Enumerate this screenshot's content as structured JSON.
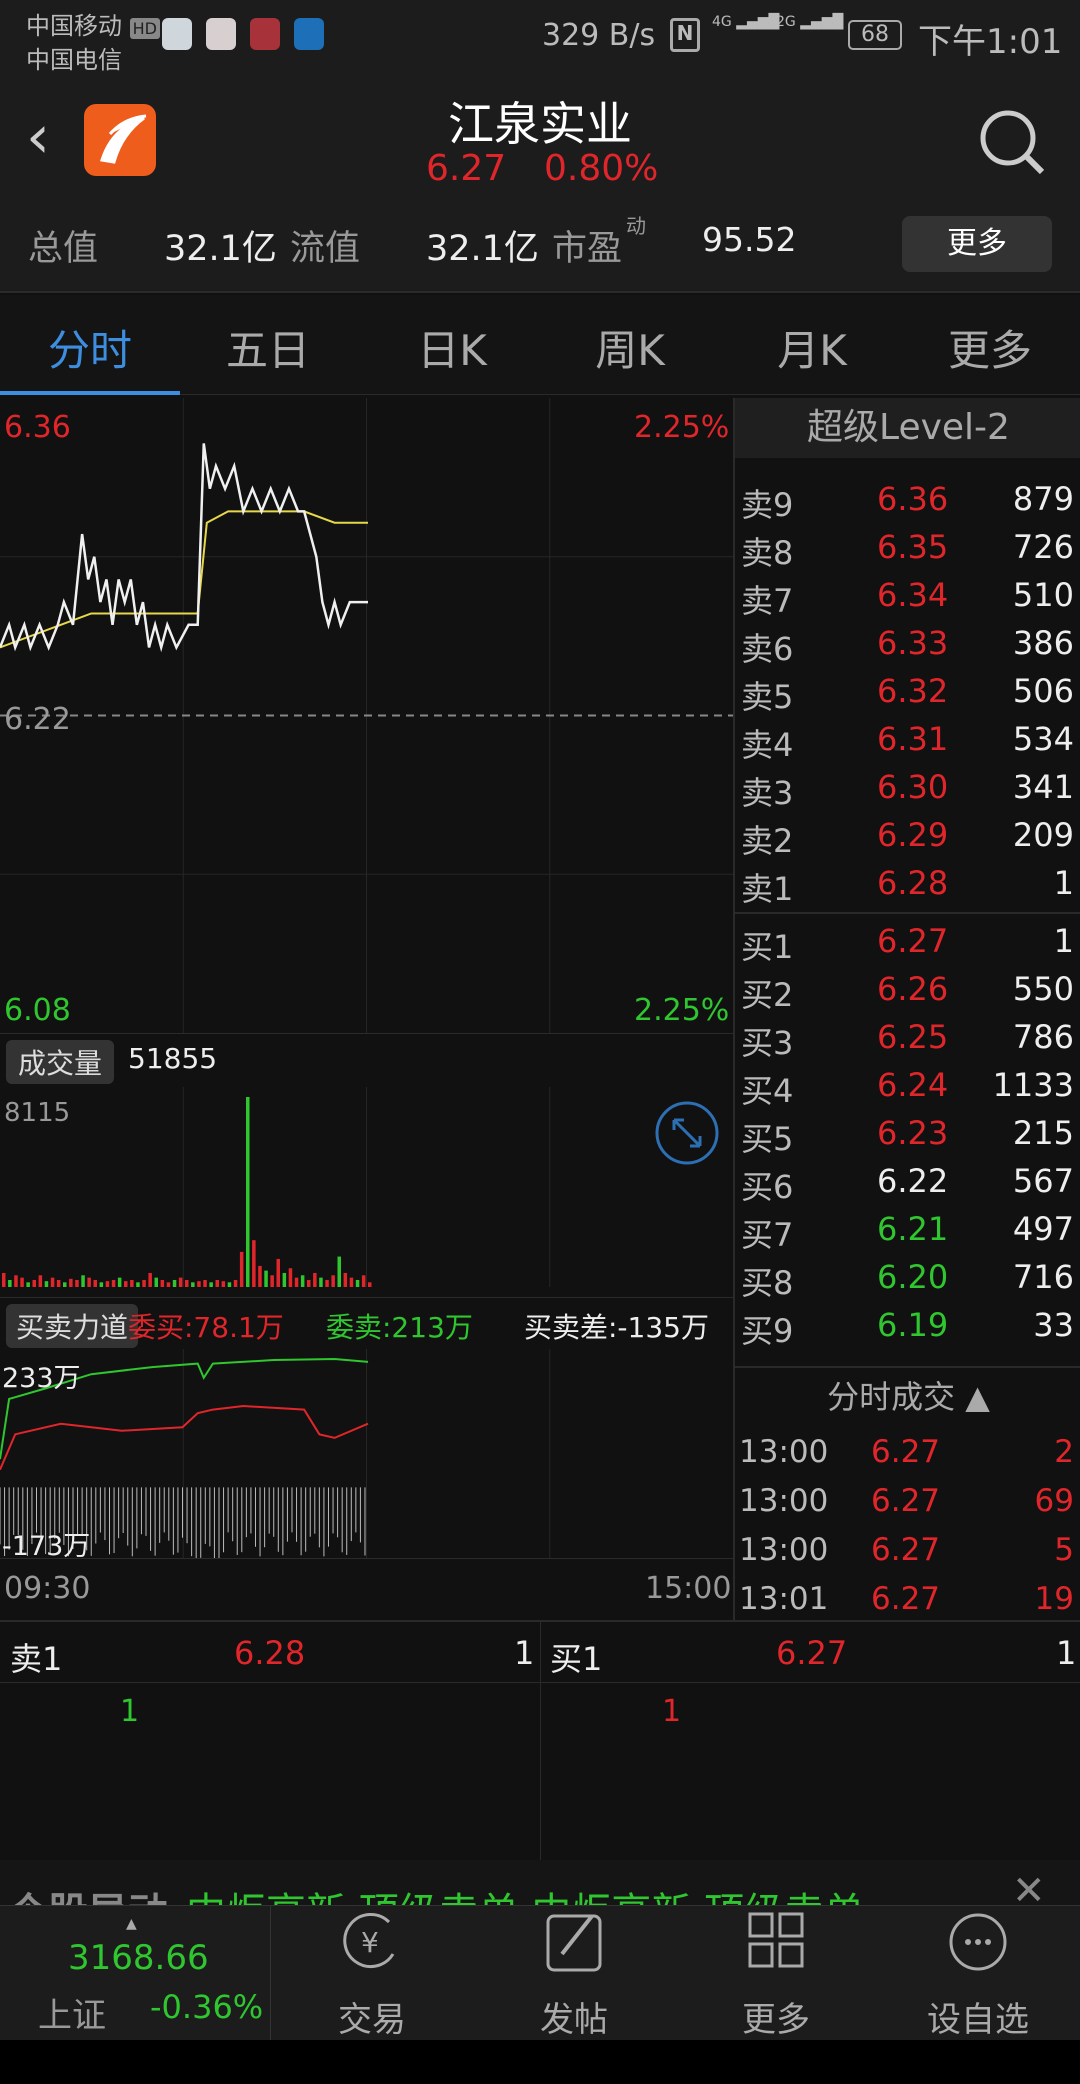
{
  "status": {
    "carrier1": "中国移动",
    "hd": "HD",
    "carrier2": "中国电信",
    "speed": "329 B/s",
    "net1": "4G",
    "net2": "2G",
    "battery": "68",
    "time": "下午1:01"
  },
  "header": {
    "title": "江泉实业",
    "price": "6.27",
    "change_pct": "0.80%",
    "stats": [
      {
        "label": "总值",
        "value": "32.1亿"
      },
      {
        "label": "流值",
        "value": "32.1亿"
      },
      {
        "label": "市盈",
        "sup": "动",
        "value": "95.52"
      }
    ],
    "more_button": "更多"
  },
  "tabs": [
    {
      "label": "分时",
      "active": true
    },
    {
      "label": "五日"
    },
    {
      "label": "日K"
    },
    {
      "label": "周K"
    },
    {
      "label": "月K"
    },
    {
      "label": "更多"
    }
  ],
  "chart_labels": {
    "top_price": "6.36",
    "top_pct": "2.25%",
    "mid_price": "6.22",
    "bottom_price": "6.08",
    "bottom_pct": "2.25%",
    "volume_tag": "成交量",
    "volume_value": "51855",
    "volume_max": "8115",
    "force_tag": "买卖力道",
    "bid": "委买:78.1万",
    "ask": "委卖:213万",
    "diff": "买卖差:-135万",
    "force_max": "233万",
    "force_min": "-173万",
    "time_start": "09:30",
    "time_end": "15:00"
  },
  "chart_data": {
    "type": "line",
    "x_unit": "minutes since 09:30",
    "ylim": [
      6.08,
      6.36
    ],
    "prev_close": 6.22,
    "xlim": [
      0,
      241
    ],
    "price": [
      [
        0,
        6.25
      ],
      [
        3,
        6.26
      ],
      [
        5,
        6.25
      ],
      [
        8,
        6.26
      ],
      [
        10,
        6.25
      ],
      [
        13,
        6.26
      ],
      [
        16,
        6.25
      ],
      [
        19,
        6.26
      ],
      [
        21,
        6.27
      ],
      [
        24,
        6.26
      ],
      [
        27,
        6.3
      ],
      [
        29,
        6.28
      ],
      [
        31,
        6.29
      ],
      [
        33,
        6.27
      ],
      [
        35,
        6.28
      ],
      [
        37,
        6.26
      ],
      [
        39,
        6.28
      ],
      [
        41,
        6.27
      ],
      [
        43,
        6.28
      ],
      [
        45,
        6.26
      ],
      [
        47,
        6.27
      ],
      [
        49,
        6.25
      ],
      [
        51,
        6.26
      ],
      [
        53,
        6.25
      ],
      [
        55,
        6.26
      ],
      [
        58,
        6.25
      ],
      [
        62,
        6.26
      ],
      [
        65,
        6.26
      ],
      [
        67,
        6.34
      ],
      [
        69,
        6.32
      ],
      [
        71,
        6.33
      ],
      [
        74,
        6.32
      ],
      [
        77,
        6.33
      ],
      [
        80,
        6.31
      ],
      [
        83,
        6.32
      ],
      [
        86,
        6.31
      ],
      [
        89,
        6.32
      ],
      [
        92,
        6.31
      ],
      [
        95,
        6.32
      ],
      [
        98,
        6.31
      ],
      [
        100,
        6.31
      ],
      [
        102,
        6.3
      ],
      [
        104,
        6.29
      ],
      [
        106,
        6.27
      ],
      [
        108,
        6.26
      ],
      [
        110,
        6.27
      ],
      [
        112,
        6.26
      ],
      [
        115,
        6.27
      ],
      [
        121,
        6.27
      ]
    ],
    "avg": [
      [
        0,
        6.25
      ],
      [
        10,
        6.255
      ],
      [
        20,
        6.26
      ],
      [
        30,
        6.265
      ],
      [
        50,
        6.265
      ],
      [
        65,
        6.265
      ],
      [
        68,
        6.305
      ],
      [
        75,
        6.31
      ],
      [
        90,
        6.31
      ],
      [
        100,
        6.31
      ],
      [
        110,
        6.305
      ],
      [
        121,
        6.305
      ]
    ],
    "volume_max": 8115,
    "volume": [
      600,
      300,
      500,
      400,
      200,
      300,
      500,
      250,
      400,
      300,
      200,
      350,
      300,
      500,
      400,
      300,
      200,
      250,
      300,
      400,
      250,
      300,
      200,
      300,
      600,
      400,
      300,
      200,
      300,
      400,
      300,
      200,
      250,
      300,
      200,
      300,
      250,
      200,
      300,
      1500,
      8115,
      2000,
      900,
      700,
      500,
      1200,
      600,
      800,
      400,
      500,
      300,
      600,
      400,
      300,
      500,
      1300,
      600,
      400,
      300,
      500,
      200
    ],
    "bid_line": [
      [
        0,
        -0.8
      ],
      [
        5,
        0.2
      ],
      [
        20,
        0.5
      ],
      [
        40,
        0.3
      ],
      [
        60,
        0.4
      ],
      [
        65,
        0.8
      ],
      [
        70,
        0.9
      ],
      [
        80,
        1.0
      ],
      [
        100,
        0.9
      ],
      [
        105,
        0.2
      ],
      [
        110,
        0.1
      ],
      [
        121,
        0.5
      ]
    ],
    "ask_line": [
      [
        0,
        -0.5
      ],
      [
        3,
        1.2
      ],
      [
        15,
        1.5
      ],
      [
        30,
        1.9
      ],
      [
        50,
        2.1
      ],
      [
        65,
        2.2
      ],
      [
        67,
        1.8
      ],
      [
        70,
        2.2
      ],
      [
        90,
        2.3
      ],
      [
        110,
        2.33
      ],
      [
        121,
        2.25
      ]
    ]
  },
  "order_book": {
    "header": "超级Level-2",
    "asks": [
      {
        "label": "卖9",
        "price": "6.36",
        "vol": "879",
        "color": "red"
      },
      {
        "label": "卖8",
        "price": "6.35",
        "vol": "726",
        "color": "red"
      },
      {
        "label": "卖7",
        "price": "6.34",
        "vol": "510",
        "color": "red"
      },
      {
        "label": "卖6",
        "price": "6.33",
        "vol": "386",
        "color": "red"
      },
      {
        "label": "卖5",
        "price": "6.32",
        "vol": "506",
        "color": "red"
      },
      {
        "label": "卖4",
        "price": "6.31",
        "vol": "534",
        "color": "red"
      },
      {
        "label": "卖3",
        "price": "6.30",
        "vol": "341",
        "color": "red"
      },
      {
        "label": "卖2",
        "price": "6.29",
        "vol": "209",
        "color": "red"
      },
      {
        "label": "卖1",
        "price": "6.28",
        "vol": "1",
        "color": "red"
      }
    ],
    "bids": [
      {
        "label": "买1",
        "price": "6.27",
        "vol": "1",
        "color": "red"
      },
      {
        "label": "买2",
        "price": "6.26",
        "vol": "550",
        "color": "red"
      },
      {
        "label": "买3",
        "price": "6.25",
        "vol": "786",
        "color": "red"
      },
      {
        "label": "买4",
        "price": "6.24",
        "vol": "1133",
        "color": "red"
      },
      {
        "label": "买5",
        "price": "6.23",
        "vol": "215",
        "color": "red"
      },
      {
        "label": "买6",
        "price": "6.22",
        "vol": "567",
        "color": "white"
      },
      {
        "label": "买7",
        "price": "6.21",
        "vol": "497",
        "color": "green"
      },
      {
        "label": "买8",
        "price": "6.20",
        "vol": "716",
        "color": "green"
      },
      {
        "label": "买9",
        "price": "6.19",
        "vol": "33",
        "color": "green"
      }
    ]
  },
  "trades": {
    "header": "分时成交",
    "rows": [
      {
        "time": "13:00",
        "price": "6.27",
        "vol": "2"
      },
      {
        "time": "13:00",
        "price": "6.27",
        "vol": "69"
      },
      {
        "time": "13:00",
        "price": "6.27",
        "vol": "5"
      },
      {
        "time": "13:01",
        "price": "6.27",
        "vol": "19"
      }
    ]
  },
  "queue": {
    "sell_label": "卖1",
    "sell_price": "6.28",
    "sell_vol": "1",
    "sell_queue": "1",
    "buy_label": "买1",
    "buy_price": "6.27",
    "buy_vol": "1",
    "buy_queue": "1"
  },
  "ticker": {
    "tag": "个股异动",
    "text": "中炬高新 顶级卖单    中炬高新 顶级卖单"
  },
  "bottom_nav": {
    "index_value": "3168.66",
    "index_name": "上证",
    "index_change": "-0.36%",
    "items": [
      {
        "label": "交易",
        "icon": "yuan-exchange-icon"
      },
      {
        "label": "发帖",
        "icon": "edit-icon"
      },
      {
        "label": "更多",
        "icon": "grid-icon"
      },
      {
        "label": "设自选",
        "icon": "more-circle-icon"
      }
    ]
  },
  "colors": {
    "red": "#e0262a",
    "green": "#2fc62f",
    "accent": "#3d8ee0",
    "avg_line": "#e6d84a"
  }
}
